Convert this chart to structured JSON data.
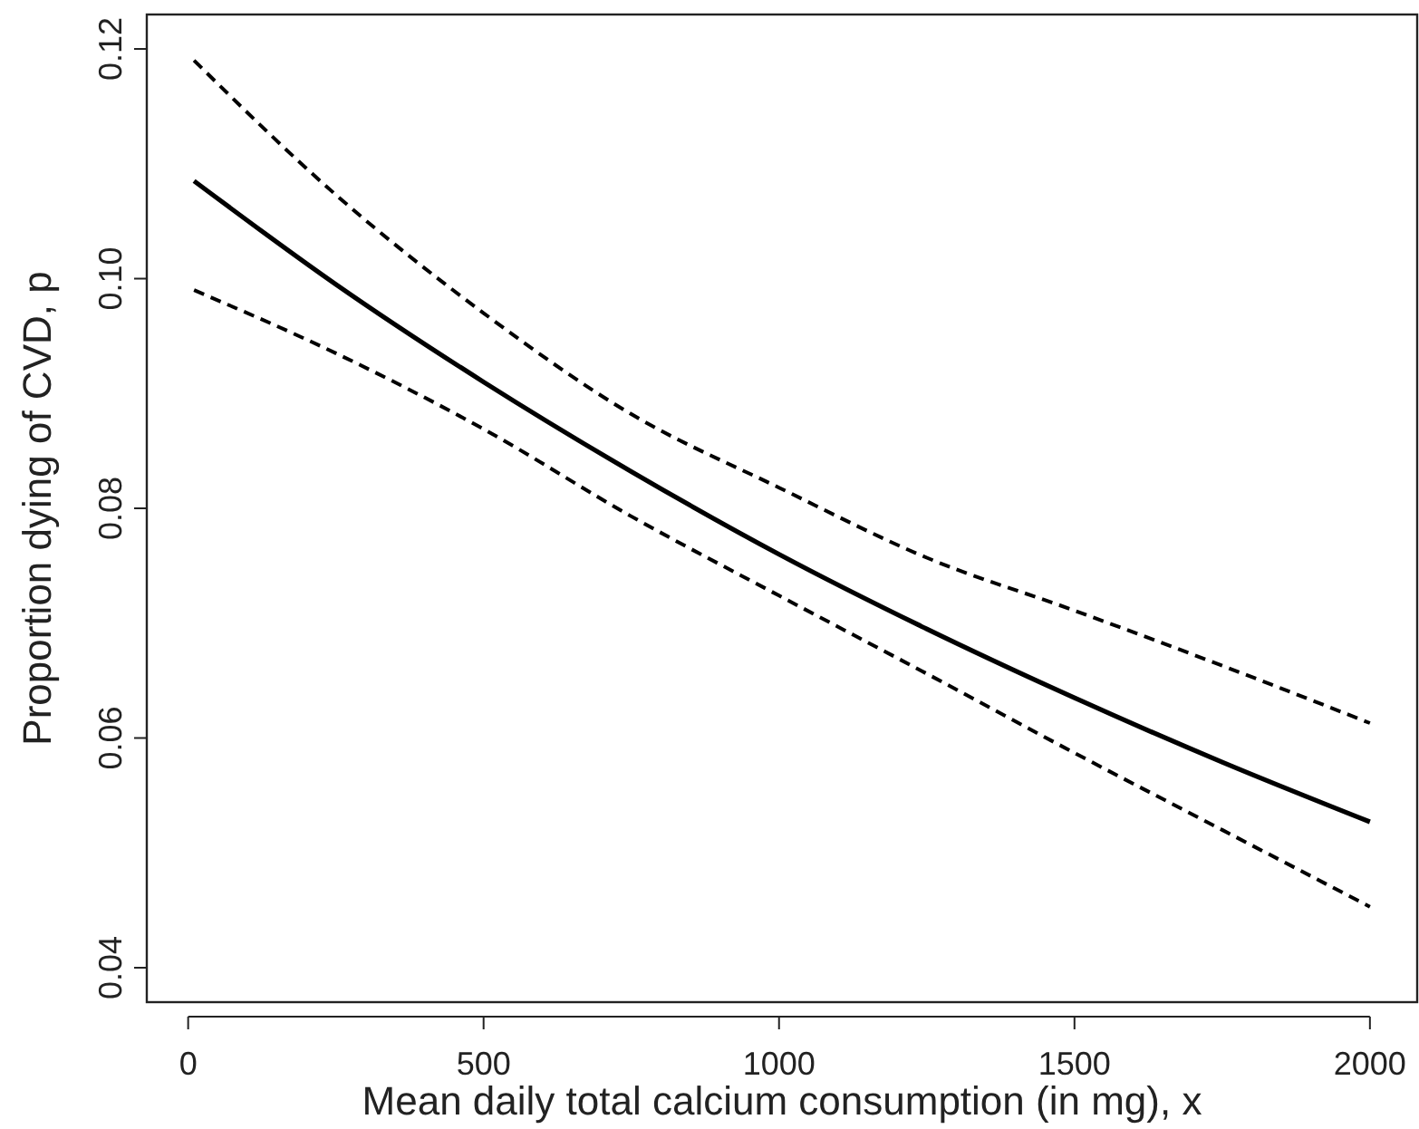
{
  "chart_data": {
    "type": "line",
    "xlabel": "Mean daily total calcium consumption (in mg), x",
    "ylabel": "Proportion dying of CVD, p",
    "x": [
      10,
      250,
      500,
      750,
      1000,
      1250,
      1500,
      1750,
      2000
    ],
    "series": [
      {
        "color": "#000000",
        "line_style": "solid",
        "values": [
          0.1085,
          0.0995,
          0.091,
          0.0832,
          0.076,
          0.0695,
          0.0635,
          0.0579,
          0.0527
        ]
      },
      {
        "color": "#000000",
        "line_style": "dashed",
        "values": [
          0.119,
          0.1073,
          0.097,
          0.0882,
          0.0818,
          0.0757,
          0.0711,
          0.0663,
          0.0613
        ]
      },
      {
        "color": "#000000",
        "line_style": "dashed",
        "values": [
          0.099,
          0.0935,
          0.0869,
          0.0793,
          0.0724,
          0.0656,
          0.0587,
          0.052,
          0.0453
        ]
      }
    ],
    "xlim": [
      -70,
      2080
    ],
    "ylim": [
      0.037,
      0.123
    ],
    "xticks": [
      0,
      500,
      1000,
      1500,
      2000
    ],
    "yticks": [
      {
        "value": 0.04,
        "label": "0.04"
      },
      {
        "value": 0.06,
        "label": "0.06"
      },
      {
        "value": 0.08,
        "label": "0.08"
      },
      {
        "value": 0.1,
        "label": "0.10"
      },
      {
        "value": 0.12,
        "label": "0.12"
      }
    ],
    "grid": false
  }
}
